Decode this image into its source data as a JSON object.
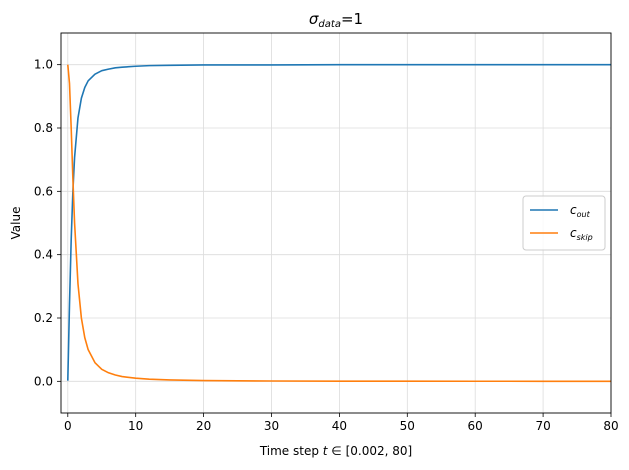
{
  "chart_data": {
    "type": "line",
    "title": "σdata=1",
    "title_main": "σ",
    "title_sub": "data",
    "title_suffix": "=1",
    "xlabel": "Time step t ∈ [0.002, 80]",
    "xlabel_prefix": "Time step ",
    "xlabel_t": "t",
    "xlabel_range": " ∈ [0.002, 80]",
    "ylabel": "Value",
    "xlim": [
      -1,
      80
    ],
    "ylim": [
      -0.1,
      1.1
    ],
    "xticks": [
      0,
      10,
      20,
      30,
      40,
      50,
      60,
      70,
      80
    ],
    "xtick_labels": [
      "0",
      "10",
      "20",
      "30",
      "40",
      "50",
      "60",
      "70",
      "80"
    ],
    "yticks": [
      0.0,
      0.2,
      0.4,
      0.6,
      0.8,
      1.0
    ],
    "ytick_labels": [
      "0.0",
      "0.2",
      "0.4",
      "0.6",
      "0.8",
      "1.0"
    ],
    "grid": true,
    "legend_position": "center-right",
    "x": [
      0.002,
      0.25,
      0.5,
      0.75,
      1,
      1.5,
      2,
      2.5,
      3,
      4,
      5,
      6,
      7,
      8,
      10,
      12,
      15,
      20,
      25,
      30,
      40,
      50,
      60,
      70,
      80
    ],
    "series": [
      {
        "name": "cout",
        "label_main": "c",
        "label_sub": "out",
        "color": "#1f77b4",
        "values": [
          0.002,
          0.243,
          0.447,
          0.6,
          0.707,
          0.832,
          0.894,
          0.928,
          0.949,
          0.97,
          0.981,
          0.986,
          0.99,
          0.992,
          0.995,
          0.997,
          0.998,
          0.999,
          0.999,
          0.999,
          1.0,
          1.0,
          1.0,
          1.0,
          1.0
        ]
      },
      {
        "name": "cskip",
        "label_main": "c",
        "label_sub": "skip",
        "color": "#ff7f0e",
        "values": [
          1.0,
          0.941,
          0.8,
          0.64,
          0.5,
          0.308,
          0.2,
          0.138,
          0.1,
          0.059,
          0.038,
          0.027,
          0.02,
          0.015,
          0.0099,
          0.0069,
          0.0044,
          0.0025,
          0.0016,
          0.0011,
          0.0006,
          0.0004,
          0.0003,
          0.0002,
          0.0002
        ]
      }
    ]
  }
}
